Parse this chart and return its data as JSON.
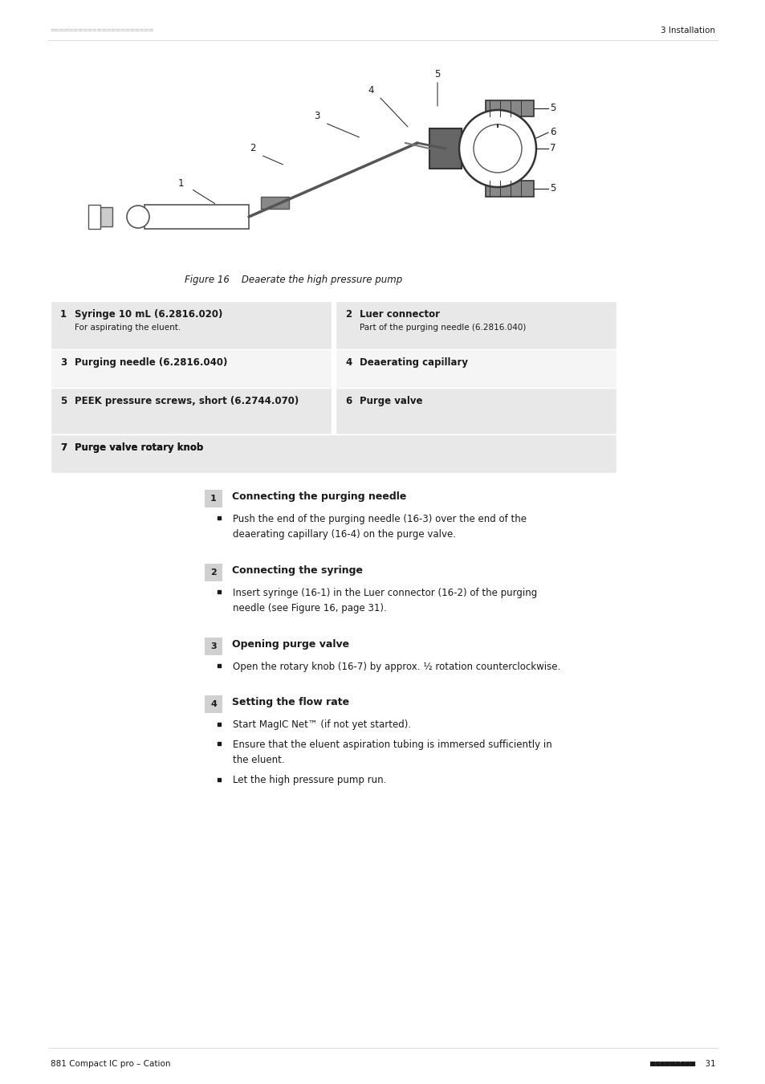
{
  "page_width": 9.54,
  "page_height": 13.5,
  "bg_color": "#ffffff",
  "header_dash_color": "#bbbbbb",
  "header_right_text": "3 Installation",
  "footer_left_text": "881 Compact IC pro – Cation",
  "footer_right_text": "31",
  "figure_caption": "Figure 16    Deaerate the high pressure pump",
  "table_items": [
    {
      "num": "1",
      "title": "Syringe 10 mL (6.2816.020)",
      "desc": "For aspirating the eluent.",
      "col": 0,
      "row": 0
    },
    {
      "num": "2",
      "title": "Luer connector",
      "desc": "Part of the purging needle (6.2816.040)",
      "col": 1,
      "row": 0
    },
    {
      "num": "3",
      "title": "Purging needle (6.2816.040)",
      "desc": "",
      "col": 0,
      "row": 1
    },
    {
      "num": "4",
      "title": "Deaerating capillary",
      "desc": "",
      "col": 1,
      "row": 1
    },
    {
      "num": "5",
      "title": "PEEK pressure screws, short (6.2744.070)",
      "desc": "",
      "col": 0,
      "row": 2
    },
    {
      "num": "6",
      "title": "Purge valve",
      "desc": "",
      "col": 1,
      "row": 2
    },
    {
      "num": "7",
      "title": "Purge valve rotary knob",
      "desc": "",
      "col": 0,
      "row": 3
    }
  ],
  "steps": [
    {
      "num": "1",
      "title": "Connecting the purging needle",
      "bullets": [
        "Push the end of the purging needle (16-3) over the end of the\ndeaerating capillary (16-4) on the purge valve."
      ]
    },
    {
      "num": "2",
      "title": "Connecting the syringe",
      "bullets": [
        "Insert syringe (16-1) in the Luer connector (16-2) of the purging\nneedle (see Figure 16, page 31)."
      ]
    },
    {
      "num": "3",
      "title": "Opening purge valve",
      "bullets": [
        "Open the rotary knob (16-7) by approx. ½ rotation counterclockwise."
      ]
    },
    {
      "num": "4",
      "title": "Setting the flow rate",
      "bullets": [
        "Start MagIC Net™ (if not yet started).",
        "Ensure that the eluent aspiration tubing is immersed sufficiently in\nthe eluent.",
        "Let the high pressure pump run."
      ]
    }
  ],
  "table_color_odd": "#e8e8e8",
  "table_color_even": "#f5f5f5",
  "step_box_color": "#d0d0d0",
  "text_color": "#1a1a1a",
  "accent_color": "#333333"
}
